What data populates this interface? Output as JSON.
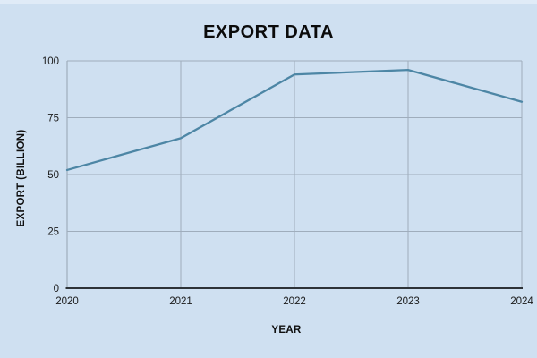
{
  "chart_data": {
    "type": "line",
    "title": "EXPORT DATA",
    "xlabel": "YEAR",
    "ylabel": "EXPORT (BILLION)",
    "categories": [
      "2020",
      "2021",
      "2022",
      "2023",
      "2024"
    ],
    "values": [
      52,
      66,
      94,
      96,
      82
    ],
    "ylim": [
      0,
      100
    ],
    "yticks": [
      0,
      25,
      50,
      75,
      100
    ],
    "grid": true,
    "legend": "none"
  },
  "colors": {
    "background": "#cfe0f1",
    "line": "#4d86a5",
    "grid": "#9fadbc",
    "axis": "#2e3338",
    "text": "#0b0b0b"
  }
}
